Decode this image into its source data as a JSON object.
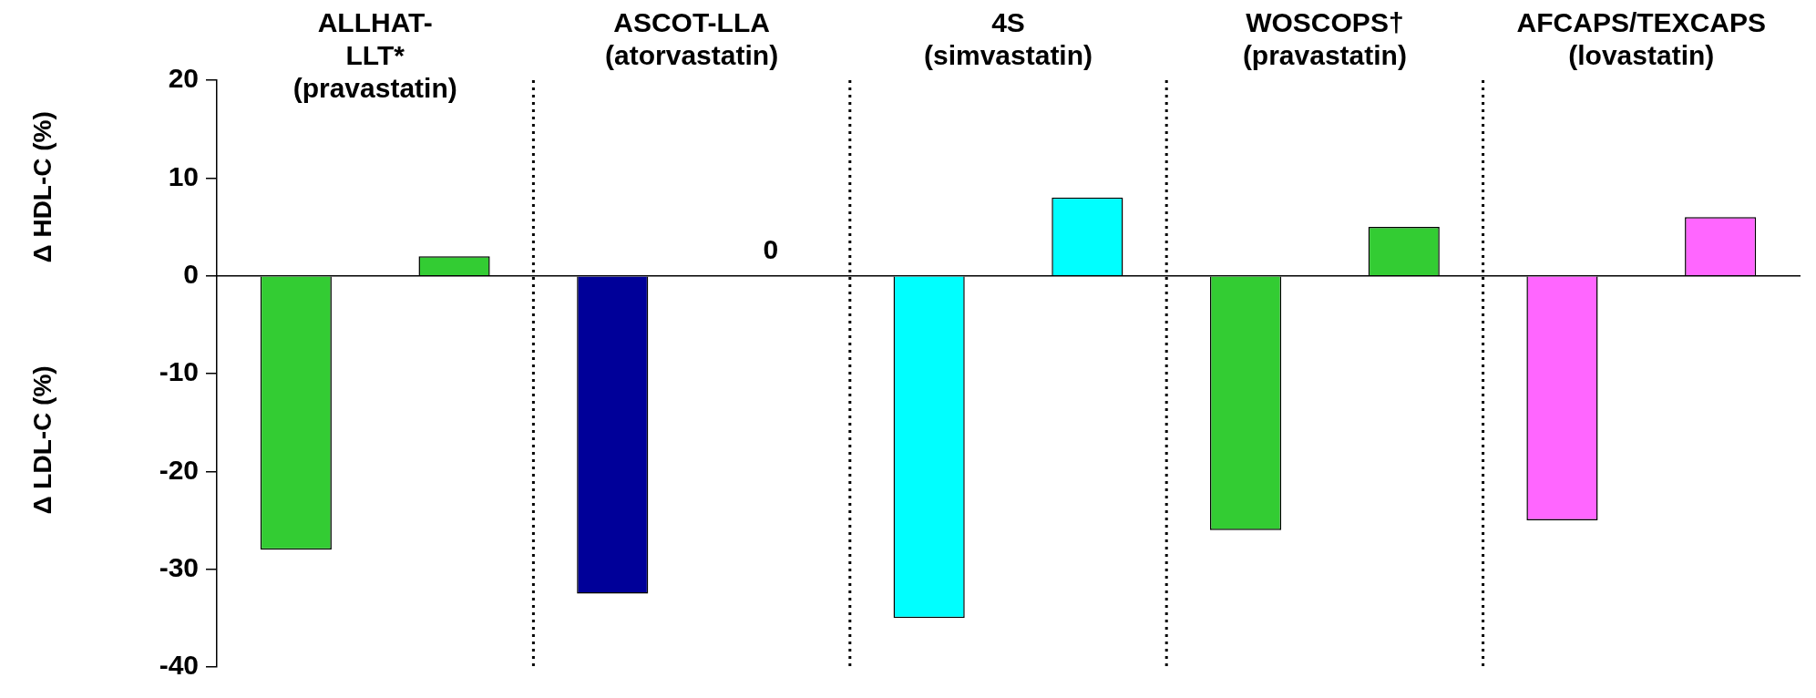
{
  "chart_data": {
    "type": "bar",
    "ylabel": "Δ LDL-C (%)",
    "categories": [
      null,
      null,
      null,
      null,
      null,
      null,
      null,
      null,
      null,
      null
    ],
    "values": [
      -28,
      2,
      -32.5,
      0,
      -35,
      8,
      -26,
      5,
      -25,
      6
    ],
    "colors": [
      "#33cc33",
      "#33cc33",
      "#000099",
      "#000099",
      "#00ffff",
      "#00ffff",
      "#33cc33",
      "#33cc33",
      "#ff66ff",
      "#ff66ff"
    ],
    "value_labels": [
      null,
      null,
      null,
      "0",
      null,
      null,
      null,
      null,
      null,
      null
    ],
    "ylim": [
      -40,
      20
    ],
    "yticks": [
      -40,
      -30,
      -20,
      -10,
      0,
      10,
      20
    ],
    "grid": false,
    "legend": false,
    "annotations": [
      "ALLHAT-\nLLT*\n(pravastatin)",
      "ASCOT-LLA\n(atorvastatin)",
      "4S\n(simvastatin)",
      "WOSCOPS†\n(pravastatin)",
      "AFCAPS/TEXCAPS\n(lovastatin)",
      "Δ HDL-C (%)"
    ]
  }
}
